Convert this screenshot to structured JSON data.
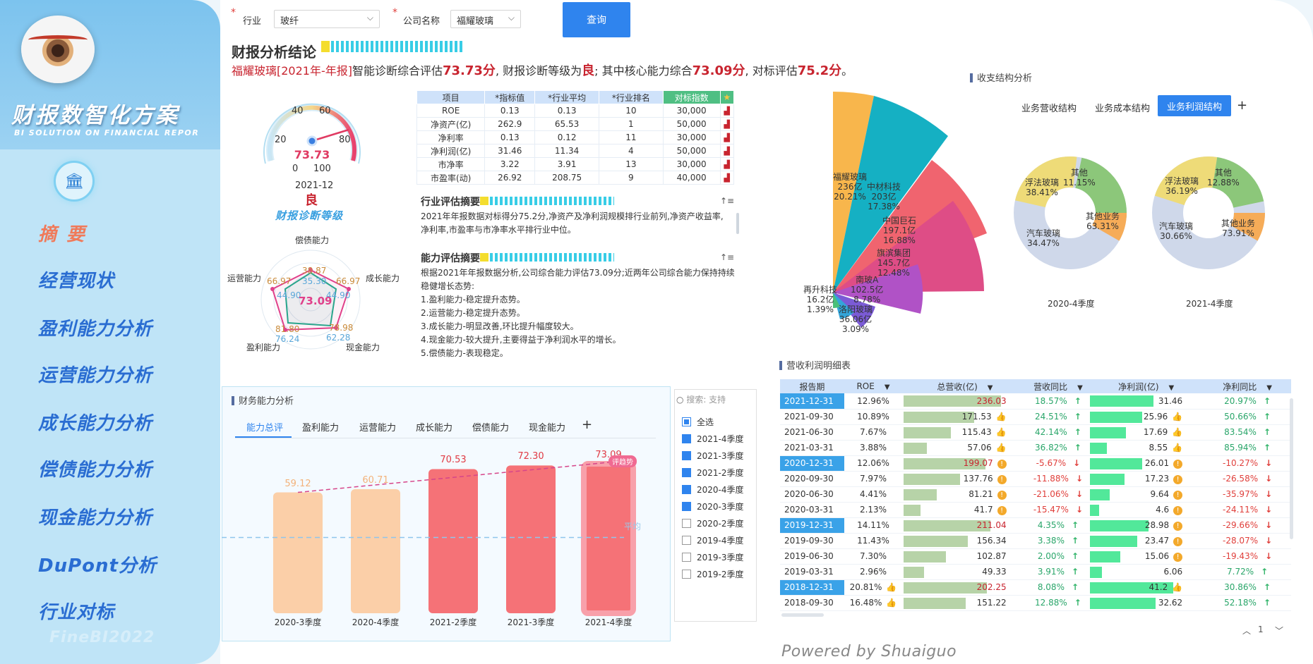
{
  "sidebar": {
    "title": "财报数智化方案",
    "subtitle": "BI SOLUTION ON FINANCIAL REPOR",
    "nav": [
      "摘要",
      "经营现状",
      "盈利能力分析",
      "运营能力分析",
      "成长能力分析",
      "偿债能力分析",
      "现金能力分析",
      "DuPont分析",
      "行业对标"
    ],
    "footer": "FineBI2022"
  },
  "filters": {
    "industry_label": "行业",
    "industry_value": "玻纤",
    "company_label": "公司名称",
    "company_value": "福耀玻璃",
    "query_button": "查询"
  },
  "conclusion": {
    "title": "财报分析结论",
    "p1": "福耀玻璃[2021年-年报]",
    "p2": "智能诊断综合评估",
    "score": "73.73分",
    "p3": ", 财报诊断等级为",
    "grade": "良",
    "p4": "; 其中核心能力综合",
    "core": "73.09分",
    "p5": ", 对标评估",
    "bench": "75.2分",
    "p6": "。"
  },
  "gauge": {
    "value": "73.73",
    "score": 73.73,
    "ticks": [
      "0",
      "20",
      "40",
      "60",
      "80",
      "100"
    ],
    "date": "2021-12",
    "grade": "良",
    "caption": "财报诊断等级"
  },
  "radar": {
    "labels": [
      "偿债能力",
      "成长能力",
      "现金能力",
      "盈利能力",
      "运营能力"
    ],
    "center": "73.09",
    "values_a": [
      "38.87",
      "66.97",
      "78.98",
      "81.80",
      "66.97"
    ],
    "values_b": [
      "35.30",
      "44.90",
      "62.28",
      "76.24",
      "44.90"
    ]
  },
  "indicator_table": {
    "headers": [
      "项目",
      "*指标值",
      "*行业平均",
      "*行业排名",
      "对标指数"
    ],
    "rows": [
      [
        "ROE",
        "0.13",
        "0.13",
        "10",
        "30,000"
      ],
      [
        "净资产(亿)",
        "262.9",
        "65.53",
        "1",
        "50,000"
      ],
      [
        "净利率",
        "0.13",
        "0.12",
        "11",
        "30,000"
      ],
      [
        "净利润(亿)",
        "31.46",
        "11.34",
        "4",
        "50,000"
      ],
      [
        "市净率",
        "3.22",
        "3.91",
        "13",
        "30,000"
      ],
      [
        "市盈率(动)",
        "26.92",
        "208.75",
        "9",
        "40,000"
      ]
    ]
  },
  "industry_eval": {
    "title": "行业评估摘要",
    "text": "2021年年报数据对标得分75.2分,净资产及净利润规模排行业前列,净资产收益率,净利率,市盈率与市净率水平排行业中位。"
  },
  "ability_eval": {
    "title": "能力评估摘要",
    "lines": [
      "根据2021年年报数据分析,公司综合能力评估73.09分;近两年公司综合能力保持持续",
      "稳健增长态势:",
      "1.盈利能力-稳定提升态势。",
      "2.运营能力-稳定提升态势。",
      "3.成长能力-明显改善,环比提升幅度较大。",
      "4.现金能力-较大提升,主要得益于净利润水平的增长。",
      "5.偿债能力-表现稳定。"
    ]
  },
  "structure": {
    "title": "收支结构分析",
    "tabs": [
      "业务营收结构",
      "业务成本结构",
      "业务利润结构"
    ],
    "rose_labels": [
      [
        "福耀玻璃",
        "236亿",
        "20.21%"
      ],
      [
        "中材科技",
        "203亿",
        "17.38%"
      ],
      [
        "中国巨石",
        "197.1亿",
        "16.88%"
      ],
      [
        "旗滨集团",
        "145.7亿",
        "12.48%"
      ],
      [
        "南玻A",
        "102.5亿",
        "8.78%"
      ],
      [
        "洛阳玻璃",
        "36.06亿",
        "3.09%"
      ],
      [
        "再升科技",
        "16.2亿",
        "1.39%"
      ]
    ],
    "pie1": {
      "caption": "2020-4季度",
      "labels": [
        [
          "其他",
          "11.15%"
        ],
        [
          "浮法玻璃",
          "38.41%"
        ],
        [
          "汽车玻璃",
          "34.47%"
        ],
        [
          "其他业务",
          "63.31%"
        ]
      ]
    },
    "pie2": {
      "caption": "2021-4季度",
      "labels": [
        [
          "其他",
          "12.88%"
        ],
        [
          "浮法玻璃",
          "36.19%"
        ],
        [
          "汽车玻璃",
          "30.66%"
        ],
        [
          "其他业务",
          "73.91%"
        ]
      ]
    }
  },
  "fin_chart": {
    "title": "财务能力分析",
    "tabs": [
      "能力总评",
      "盈利能力",
      "运营能力",
      "成长能力",
      "偿债能力",
      "现金能力"
    ],
    "badge": "评趋势",
    "ref_label": "平均",
    "categories": [
      "2020-3季度",
      "2020-4季度",
      "2021-2季度",
      "2021-3季度",
      "2021-4季度"
    ],
    "values": [
      "59.12",
      "60.71",
      "70.53",
      "72.30",
      "73.09"
    ]
  },
  "season_filter": {
    "search_placeholder": "搜索: 支持",
    "all_label": "全选",
    "items": [
      {
        "label": "2021-4季度",
        "on": true
      },
      {
        "label": "2021-3季度",
        "on": true
      },
      {
        "label": "2021-2季度",
        "on": true
      },
      {
        "label": "2020-4季度",
        "on": true
      },
      {
        "label": "2020-3季度",
        "on": true
      },
      {
        "label": "2020-2季度",
        "on": false
      },
      {
        "label": "2019-4季度",
        "on": false
      },
      {
        "label": "2019-3季度",
        "on": false
      },
      {
        "label": "2019-2季度",
        "on": false
      }
    ]
  },
  "detail": {
    "title": "营收利润明细表",
    "headers": [
      "报告期",
      "ROE",
      "总营收(亿)",
      "营收同比",
      "净利润(亿)",
      "净利同比"
    ],
    "rows": [
      [
        "2021-12-31",
        "12.96%",
        "236.03",
        "18.57%",
        "31.46",
        "20.97%"
      ],
      [
        "2021-09-30",
        "10.89%",
        "171.53",
        "24.51%",
        "25.96",
        "50.66%"
      ],
      [
        "2021-06-30",
        "7.67%",
        "115.43",
        "42.14%",
        "17.69",
        "83.54%"
      ],
      [
        "2021-03-31",
        "3.88%",
        "57.06",
        "36.82%",
        "8.55",
        "85.94%"
      ],
      [
        "2020-12-31",
        "12.06%",
        "199.07",
        "-5.67%",
        "26.01",
        "-10.27%"
      ],
      [
        "2020-09-30",
        "7.97%",
        "137.76",
        "-11.88%",
        "17.23",
        "-26.58%"
      ],
      [
        "2020-06-30",
        "4.41%",
        "81.21",
        "-21.06%",
        "9.64",
        "-35.97%"
      ],
      [
        "2020-03-31",
        "2.13%",
        "41.7",
        "-15.47%",
        "4.6",
        "-24.11%"
      ],
      [
        "2019-12-31",
        "14.11%",
        "211.04",
        "4.35%",
        "28.98",
        "-29.66%"
      ],
      [
        "2019-09-30",
        "11.43%",
        "156.34",
        "3.38%",
        "23.47",
        "-28.07%"
      ],
      [
        "2019-06-30",
        "7.30%",
        "102.87",
        "2.00%",
        "15.06",
        "-19.43%"
      ],
      [
        "2019-03-31",
        "2.96%",
        "49.33",
        "3.91%",
        "6.06",
        "7.72%"
      ],
      [
        "2018-12-31",
        "20.81%",
        "202.25",
        "8.08%",
        "41.2",
        "30.86%"
      ],
      [
        "2018-09-30",
        "16.48%",
        "151.22",
        "12.88%",
        "32.62",
        "52.18%"
      ]
    ],
    "page": "1"
  },
  "powered": "Powered by Shuaiguo"
}
